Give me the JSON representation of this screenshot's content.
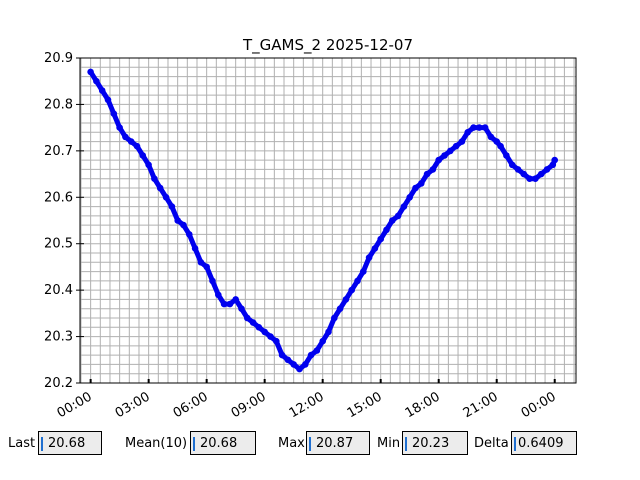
{
  "chart_data": {
    "type": "line",
    "title": "T_GAMS_2 2025-12-07",
    "xlabel": "",
    "ylabel": "",
    "x_ticks": [
      "00:00",
      "03:00",
      "06:00",
      "09:00",
      "12:00",
      "15:00",
      "18:00",
      "21:00",
      "00:00"
    ],
    "y_ticks": [
      "20.2",
      "20.3",
      "20.4",
      "20.5",
      "20.6",
      "20.7",
      "20.8",
      "20.9"
    ],
    "ylim": [
      20.2,
      20.9
    ],
    "xlim_hours": [
      -0.55,
      25.1
    ],
    "grid": true,
    "series_color": "#0000ee",
    "series": [
      {
        "x_hours": [
          0.0,
          0.3,
          0.6,
          0.9,
          1.2,
          1.5,
          1.8,
          2.1,
          2.4,
          2.7,
          3.0,
          3.3,
          3.6,
          3.9,
          4.2,
          4.5,
          4.8,
          5.1,
          5.4,
          5.7,
          6.0,
          6.3,
          6.6,
          6.9,
          7.2,
          7.5,
          7.8,
          8.1,
          8.4,
          8.7,
          9.0,
          9.3,
          9.6,
          9.9,
          10.2,
          10.5,
          10.8,
          11.1,
          11.4,
          11.7,
          12.0,
          12.3,
          12.6,
          12.9,
          13.2,
          13.5,
          13.8,
          14.1,
          14.4,
          14.7,
          15.0,
          15.3,
          15.6,
          15.9,
          16.2,
          16.5,
          16.8,
          17.1,
          17.4,
          17.7,
          18.0,
          18.3,
          18.6,
          18.9,
          19.2,
          19.5,
          19.8,
          20.1,
          20.4,
          20.7,
          21.0,
          21.2,
          21.5,
          21.8,
          22.1,
          22.4,
          22.7,
          23.0,
          23.3,
          23.6,
          23.9,
          24.0
        ],
        "values": [
          20.87,
          20.85,
          20.83,
          20.81,
          20.78,
          20.75,
          20.73,
          20.72,
          20.71,
          20.69,
          20.67,
          20.64,
          20.62,
          20.6,
          20.58,
          20.55,
          20.54,
          20.52,
          20.49,
          20.46,
          20.45,
          20.42,
          20.39,
          20.37,
          20.37,
          20.38,
          20.36,
          20.34,
          20.33,
          20.32,
          20.31,
          20.3,
          20.29,
          20.26,
          20.25,
          20.24,
          20.23,
          20.24,
          20.26,
          20.27,
          20.29,
          20.31,
          20.34,
          20.36,
          20.38,
          20.4,
          20.42,
          20.44,
          20.47,
          20.49,
          20.51,
          20.53,
          20.55,
          20.56,
          20.58,
          20.6,
          20.62,
          20.63,
          20.65,
          20.66,
          20.68,
          20.69,
          20.7,
          20.71,
          20.72,
          20.74,
          20.75,
          20.75,
          20.75,
          20.73,
          20.72,
          20.71,
          20.69,
          20.67,
          20.66,
          20.65,
          20.64,
          20.64,
          20.65,
          20.66,
          20.67,
          20.68
        ]
      }
    ]
  },
  "stats": {
    "last_label": "Last",
    "last_value": "20.68",
    "mean_label": "Mean(10)",
    "mean_value": "20.68",
    "max_label": "Max",
    "max_value": "20.87",
    "min_label": "Min",
    "min_value": "20.23",
    "delta_label": "Delta",
    "delta_value": "0.6409"
  }
}
